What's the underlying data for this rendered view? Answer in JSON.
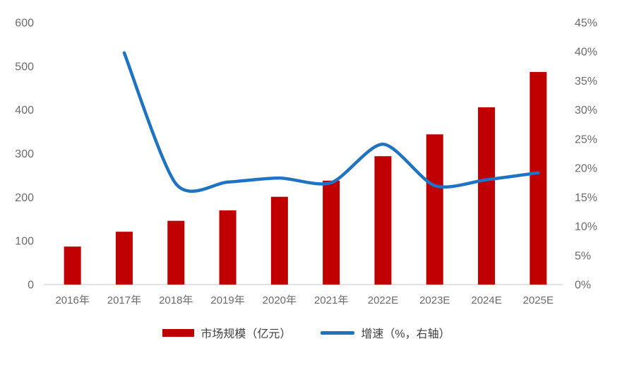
{
  "chart_data": {
    "type": "bar",
    "subtype": "combo-bar-line-dual-axis",
    "categories": [
      "2016年",
      "2017年",
      "2018年",
      "2019年",
      "2020年",
      "2021年",
      "2022E",
      "2023E",
      "2024E",
      "2025E"
    ],
    "series": [
      {
        "name": "市场规模（亿元）",
        "type": "bar",
        "axis": "left",
        "color": "#c00000",
        "values": [
          87,
          121,
          146,
          170,
          201,
          238,
          294,
          344,
          406,
          487
        ]
      },
      {
        "name": "增速（%，右轴）",
        "type": "line",
        "axis": "right",
        "color": "#1e73c3",
        "values": [
          null,
          39.8,
          17.3,
          17.6,
          18.3,
          17.5,
          24.1,
          17.0,
          18.0,
          19.2
        ]
      }
    ],
    "left_axis": {
      "min": 0,
      "max": 600,
      "step": 100,
      "ticks": [
        "0",
        "100",
        "200",
        "300",
        "400",
        "500",
        "600"
      ]
    },
    "right_axis": {
      "min": 0,
      "max": 45,
      "step": 5,
      "ticks": [
        "0%",
        "5%",
        "10%",
        "15%",
        "20%",
        "25%",
        "30%",
        "35%",
        "40%",
        "45%"
      ]
    },
    "grid": false,
    "legend_position": "bottom",
    "axis_line_color": "#d9d9d9",
    "tick_label_color": "#6b6b6b"
  },
  "legend": {
    "items": [
      {
        "label": "市场规模（亿元）",
        "swatch": "bar",
        "color": "#c00000"
      },
      {
        "label": "增速（%，右轴）",
        "swatch": "line",
        "color": "#1e73c3"
      }
    ]
  }
}
